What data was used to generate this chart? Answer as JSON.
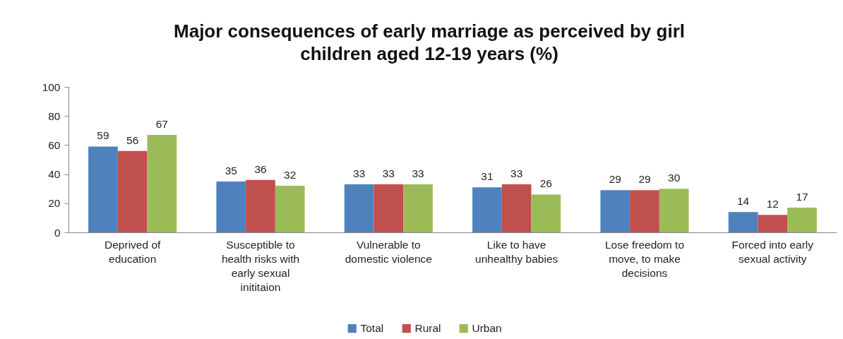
{
  "chart_data": {
    "type": "bar",
    "title": "Major consequences of early marriage as perceived by girl children aged 12-19 years (%)",
    "categories": [
      "Deprived of education",
      "Susceptible to health risks with early sexual inititaion",
      "Vulnerable to domestic violence",
      "Like to have unhealthy babies",
      "Lose freedom to move, to make decisions",
      "Forced into early sexual activity"
    ],
    "series": [
      {
        "name": "Total",
        "color": "#4f81bd",
        "values": [
          59,
          35,
          33,
          31,
          29,
          14
        ]
      },
      {
        "name": "Rural",
        "color": "#c0504d",
        "values": [
          56,
          36,
          33,
          33,
          29,
          12
        ]
      },
      {
        "name": "Urban",
        "color": "#9bbb59",
        "values": [
          67,
          32,
          33,
          26,
          30,
          17
        ]
      }
    ],
    "ylim": [
      0,
      100
    ],
    "yticks": [
      0,
      20,
      40,
      60,
      80,
      100
    ],
    "grid": false,
    "legend": "bottom",
    "data_labels": true
  }
}
